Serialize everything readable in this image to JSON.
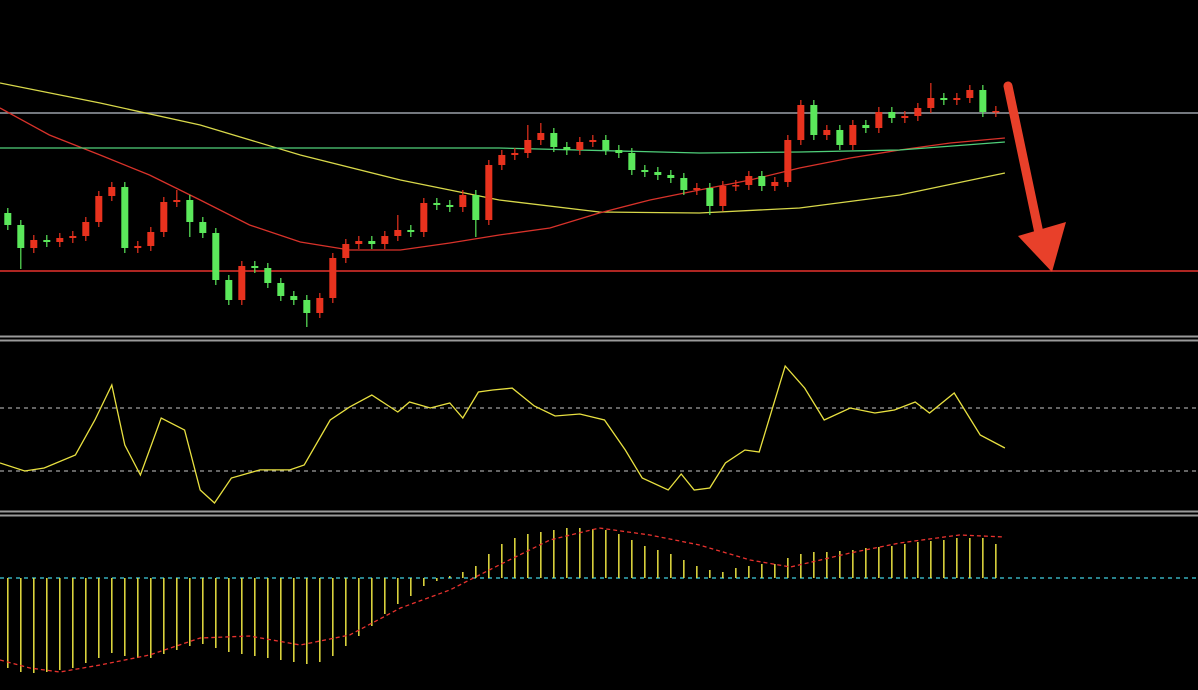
{
  "chart_data": [
    {
      "type": "candlestick",
      "xlim": [
        -0.6,
        91.55
      ],
      "ylim": [
        0,
        335
      ],
      "up_color": "#e8321e",
      "down_color": "#5be85b",
      "open": [
        122,
        110,
        87,
        95,
        93,
        97,
        99,
        113,
        139,
        148,
        87,
        89,
        103,
        133,
        135,
        113,
        102,
        55,
        35,
        69,
        67,
        52,
        39,
        35,
        22,
        37,
        77,
        91,
        94,
        91,
        99,
        105,
        103,
        132,
        130,
        128,
        140,
        115,
        170,
        180,
        182,
        195,
        202,
        188,
        185,
        193,
        195,
        185,
        182,
        165,
        163,
        160,
        157,
        145,
        147,
        129,
        149,
        150,
        159,
        149,
        153,
        195,
        230,
        200,
        205,
        190,
        210,
        207,
        223,
        217,
        219,
        227,
        237,
        235,
        237,
        245,
        223
      ],
      "high": [
        127,
        115,
        100,
        100,
        102,
        104,
        118,
        144,
        153,
        153,
        94,
        108,
        138,
        145,
        140,
        118,
        107,
        60,
        74,
        74,
        72,
        57,
        44,
        40,
        42,
        82,
        96,
        99,
        99,
        104,
        120,
        110,
        137,
        137,
        135,
        145,
        145,
        175,
        185,
        187,
        210,
        212,
        207,
        193,
        198,
        200,
        200,
        190,
        187,
        170,
        168,
        165,
        162,
        152,
        152,
        154,
        155,
        164,
        164,
        158,
        200,
        235,
        235,
        210,
        210,
        215,
        215,
        228,
        228,
        224,
        232,
        252,
        242,
        242,
        250,
        250,
        229
      ],
      "low": [
        105,
        66,
        82,
        88,
        88,
        92,
        94,
        108,
        134,
        82,
        82,
        84,
        98,
        128,
        98,
        97,
        50,
        30,
        30,
        62,
        47,
        34,
        30,
        8,
        17,
        32,
        72,
        86,
        86,
        86,
        94,
        98,
        98,
        125,
        123,
        123,
        98,
        110,
        165,
        175,
        177,
        190,
        183,
        180,
        180,
        188,
        180,
        177,
        160,
        158,
        155,
        152,
        140,
        140,
        120,
        124,
        144,
        145,
        144,
        144,
        148,
        190,
        195,
        195,
        185,
        185,
        202,
        202,
        212,
        212,
        214,
        222,
        230,
        230,
        232,
        218,
        218
      ],
      "close": [
        110,
        87,
        95,
        93,
        97,
        99,
        113,
        139,
        148,
        87,
        89,
        103,
        133,
        135,
        113,
        102,
        55,
        35,
        69,
        67,
        52,
        39,
        35,
        22,
        37,
        77,
        91,
        94,
        91,
        99,
        105,
        103,
        132,
        130,
        128,
        140,
        115,
        170,
        180,
        182,
        195,
        202,
        188,
        185,
        193,
        195,
        185,
        182,
        165,
        163,
        160,
        157,
        145,
        147,
        129,
        149,
        150,
        159,
        149,
        153,
        195,
        230,
        200,
        205,
        190,
        210,
        207,
        223,
        217,
        219,
        227,
        237,
        235,
        237,
        245,
        223,
        224
      ],
      "overlays": [
        {
          "color": "#d8d84a",
          "x": [
            -0.6,
            7.1,
            14.8,
            22.5,
            30.2,
            37.8,
            45.5,
            53.2,
            60.9,
            68.6,
            76.7
          ],
          "values": [
            252,
            232,
            210,
            180,
            155,
            135,
            123,
            122,
            127,
            140,
            162
          ]
        },
        {
          "color": "#d8322a",
          "x": [
            -0.6,
            3.2,
            7.1,
            10.9,
            14.8,
            18.6,
            22.5,
            26.3,
            30.2,
            34,
            37.8,
            41.7,
            45.5,
            49.4,
            53.2,
            57.1,
            60.9,
            64.8,
            68.6,
            72.5,
            76.7
          ],
          "values": [
            227,
            200,
            180,
            160,
            135,
            110,
            93,
            85,
            85,
            92,
            100,
            107,
            122,
            135,
            145,
            155,
            167,
            177,
            185,
            192,
            197
          ]
        },
        {
          "color": "#4fcf7a",
          "x": [
            -0.6,
            22.5,
            37.8,
            53.2,
            60.9,
            68.6,
            76.7
          ],
          "values": [
            187,
            187,
            187,
            182,
            183,
            185,
            193
          ]
        }
      ],
      "hlines": [
        {
          "value": 222,
          "color": "#9aa0a8"
        },
        {
          "value": 64,
          "color": "#e8322e"
        }
      ]
    },
    {
      "type": "line",
      "xlim": [
        -0.6,
        91.55
      ],
      "ylim": [
        -20,
        130
      ],
      "color": "#e8e040",
      "x": [
        -0.6,
        1.3,
        2.8,
        5.2,
        6.7,
        8,
        9,
        10.2,
        11.8,
        13.6,
        14.8,
        15.9,
        17.2,
        19.4,
        21.7,
        22.8,
        24.8,
        26.3,
        28,
        30,
        30.9,
        32.5,
        34,
        35,
        36.2,
        37.3,
        38.8,
        40.5,
        42.1,
        44,
        45.9,
        47.5,
        48.8,
        50.8,
        51.8,
        52.8,
        54,
        55.2,
        56.7,
        57.8,
        59.8,
        61.3,
        62.8,
        64.8,
        66.7,
        68.2,
        69.8,
        70.9,
        72.8,
        74.8,
        76.7
      ],
      "values": [
        27.6,
        20,
        22.9,
        35.2,
        68.6,
        101.9,
        44.8,
        16.2,
        70.5,
        59,
        1.9,
        -10.5,
        13.3,
        21,
        21,
        25.7,
        68.6,
        81,
        92.4,
        76.2,
        85.7,
        80,
        84.8,
        70.5,
        95.2,
        97.1,
        99,
        81.9,
        72.4,
        74.3,
        68.6,
        40,
        13.3,
        1.9,
        17.1,
        1.9,
        3.8,
        27.6,
        40,
        38.1,
        120,
        99,
        68.6,
        80,
        75.2,
        78.1,
        85.7,
        75.2,
        94.3,
        54.3,
        41.9
      ],
      "hlines": [
        {
          "value": 80,
          "color": "#a0a0a0"
        },
        {
          "value": 20,
          "color": "#a0a0a0"
        }
      ]
    },
    {
      "type": "bar",
      "xlim": [
        -0.6,
        91.55
      ],
      "ylim": [
        -107,
        60
      ],
      "color": "#e8e040",
      "values": [
        -90,
        -94,
        -95,
        -94,
        -92,
        -90,
        -85,
        -80,
        -75,
        -78,
        -80,
        -80,
        -76,
        -72,
        -68,
        -66,
        -70,
        -74,
        -76,
        -78,
        -80,
        -82,
        -84,
        -86,
        -84,
        -78,
        -68,
        -58,
        -48,
        -36,
        -26,
        -18,
        -8,
        -3,
        2,
        6,
        12,
        24,
        34,
        40,
        44,
        46,
        48,
        50,
        50,
        49,
        48,
        44,
        38,
        32,
        28,
        24,
        18,
        12,
        8,
        6,
        10,
        12,
        14,
        14,
        20,
        24,
        26,
        26,
        27,
        28,
        30,
        31,
        32,
        34,
        36,
        37,
        38,
        40,
        40,
        40,
        34
      ],
      "overlays": [
        {
          "color": "#e8322e",
          "x": [
            -0.6,
            1.7,
            4,
            7.1,
            10.9,
            14.8,
            18.6,
            22.5,
            26.3,
            30.2,
            34,
            37.8,
            41.7,
            45.5,
            49.4,
            53.2,
            57.1,
            60.2,
            64.8,
            68.6,
            73.2,
            76.7
          ],
          "values": [
            -82,
            -90,
            -94,
            -87,
            -77,
            -60,
            -58,
            -67,
            -57,
            -30,
            -12,
            13,
            38,
            50,
            43,
            33,
            18,
            11,
            25,
            35,
            43,
            41
          ]
        }
      ],
      "hlines": [
        {
          "value": 0,
          "color": "#40d0e0"
        }
      ]
    }
  ]
}
